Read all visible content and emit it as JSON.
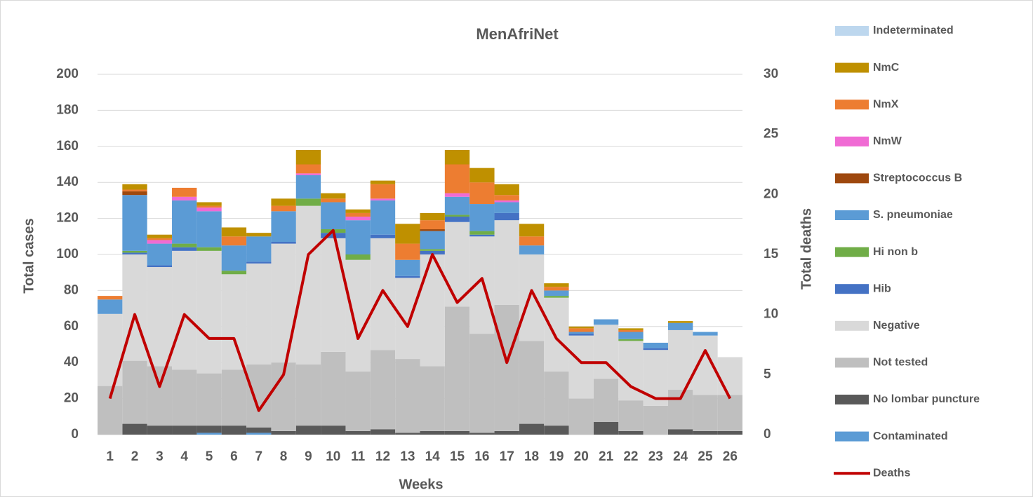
{
  "chart_data": {
    "type": "bar",
    "stacked": true,
    "title": "MenAfriNet",
    "x_label": "Weeks",
    "y_label": "Total cases",
    "y2_label": "Total deaths",
    "categories": [
      "1",
      "2",
      "3",
      "4",
      "5",
      "6",
      "7",
      "8",
      "9",
      "10",
      "11",
      "12",
      "13",
      "14",
      "15",
      "16",
      "17",
      "18",
      "19",
      "20",
      "21",
      "22",
      "23",
      "24",
      "25",
      "26"
    ],
    "ylim": [
      0,
      200
    ],
    "yticks": [
      0,
      20,
      40,
      60,
      80,
      100,
      120,
      140,
      160,
      180,
      200
    ],
    "y2lim": [
      0,
      30
    ],
    "y2ticks": [
      0,
      5,
      10,
      15,
      20,
      25,
      30
    ],
    "grid": true,
    "legend": "right",
    "series": [
      {
        "name": "Contaminated",
        "color": "#5b9bd5",
        "values": [
          0,
          0,
          0,
          0,
          1,
          0,
          1,
          0,
          0,
          0,
          0,
          0,
          0,
          0,
          0,
          0,
          0,
          0,
          0,
          0,
          0,
          0,
          0,
          0,
          0,
          0
        ]
      },
      {
        "name": "No lombar puncture",
        "color": "#595959",
        "values": [
          0,
          6,
          5,
          5,
          4,
          5,
          3,
          2,
          5,
          5,
          2,
          3,
          1,
          2,
          2,
          1,
          2,
          6,
          5,
          0,
          7,
          2,
          0,
          3,
          2,
          2
        ]
      },
      {
        "name": "Not tested",
        "color": "#bfbfbf",
        "values": [
          27,
          35,
          33,
          31,
          29,
          31,
          35,
          38,
          34,
          41,
          33,
          44,
          41,
          36,
          69,
          55,
          70,
          46,
          30,
          20,
          24,
          17,
          16,
          22,
          20,
          20
        ]
      },
      {
        "name": "Negative",
        "color": "#d9d9d9",
        "values": [
          40,
          59,
          55,
          66,
          68,
          53,
          56,
          66,
          88,
          63,
          62,
          62,
          45,
          62,
          47,
          54,
          47,
          48,
          41,
          35,
          30,
          33,
          31,
          33,
          33,
          21
        ]
      },
      {
        "name": "Hib",
        "color": "#4472c4",
        "values": [
          0,
          1,
          1,
          2,
          0,
          0,
          1,
          1,
          0,
          3,
          0,
          2,
          1,
          2,
          3,
          1,
          4,
          0,
          0,
          1,
          0,
          0,
          1,
          0,
          0,
          0
        ]
      },
      {
        "name": "Hi non b",
        "color": "#70ad47",
        "values": [
          0,
          1,
          0,
          2,
          2,
          2,
          0,
          0,
          4,
          2,
          3,
          0,
          0,
          1,
          1,
          2,
          0,
          0,
          1,
          0,
          0,
          1,
          0,
          0,
          0,
          0
        ]
      },
      {
        "name": "S. pneumoniae",
        "color": "#5b9bd5",
        "values": [
          8,
          31,
          12,
          24,
          20,
          14,
          14,
          17,
          13,
          15,
          19,
          19,
          9,
          10,
          10,
          15,
          6,
          5,
          3,
          1,
          3,
          4,
          3,
          4,
          2,
          0
        ]
      },
      {
        "name": "Streptococcus B",
        "color": "#9e480e",
        "values": [
          0,
          2,
          0,
          0,
          0,
          0,
          0,
          0,
          0,
          0,
          0,
          0,
          0,
          1,
          0,
          0,
          0,
          0,
          0,
          0,
          0,
          0,
          0,
          0,
          0,
          0
        ]
      },
      {
        "name": "NmW",
        "color": "#f06bd4",
        "values": [
          0,
          0,
          2,
          2,
          2,
          0,
          0,
          0,
          1,
          0,
          2,
          1,
          0,
          0,
          2,
          0,
          1,
          0,
          0,
          0,
          0,
          0,
          0,
          0,
          0,
          0
        ]
      },
      {
        "name": "NmX",
        "color": "#ed7d31",
        "values": [
          2,
          1,
          1,
          5,
          1,
          5,
          0,
          3,
          5,
          2,
          2,
          8,
          9,
          5,
          16,
          12,
          3,
          5,
          2,
          2,
          0,
          1,
          0,
          0,
          0,
          0
        ]
      },
      {
        "name": "NmC",
        "color": "#bf9000",
        "values": [
          0,
          3,
          2,
          0,
          2,
          5,
          2,
          4,
          8,
          3,
          2,
          2,
          11,
          4,
          8,
          8,
          6,
          7,
          2,
          1,
          0,
          1,
          0,
          1,
          0,
          0
        ]
      },
      {
        "name": "Indeterminated",
        "color": "#bdd7ee",
        "values": [
          0,
          0,
          0,
          0,
          0,
          0,
          0,
          0,
          0,
          0,
          0,
          0,
          0,
          0,
          0,
          0,
          0,
          0,
          0,
          0,
          0,
          0,
          0,
          0,
          0,
          0
        ]
      },
      {
        "name": "Deaths",
        "color": "#c00000",
        "type": "line",
        "axis": "y2",
        "values": [
          3,
          10,
          4,
          10,
          8,
          8,
          2,
          5,
          15,
          17,
          8,
          12,
          9,
          15,
          11,
          13,
          6,
          12,
          8,
          6,
          6,
          4,
          3,
          3,
          7,
          3
        ]
      }
    ]
  }
}
